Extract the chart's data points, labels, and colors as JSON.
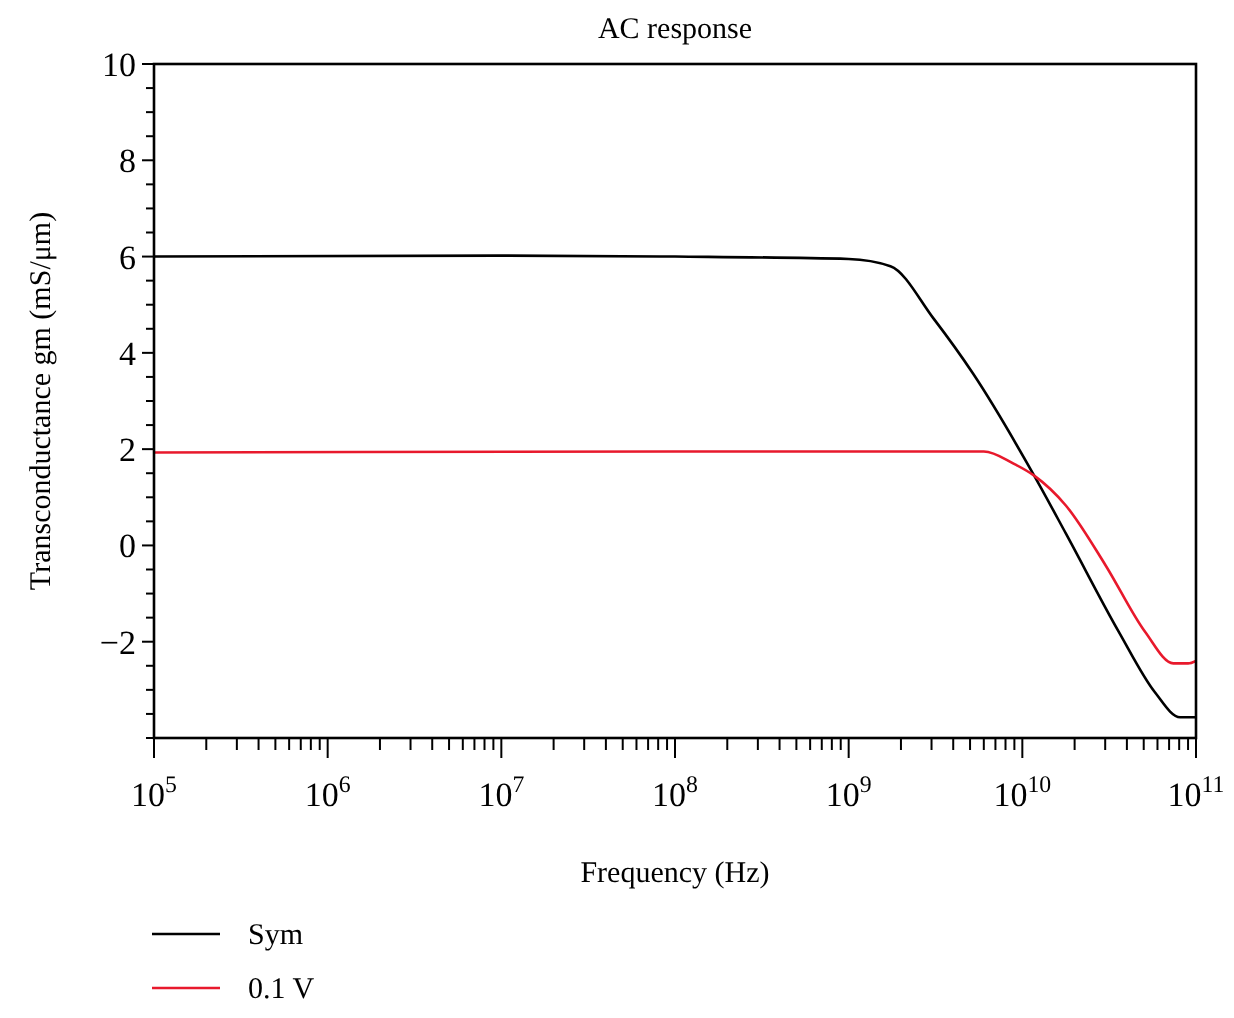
{
  "chart_data": {
    "type": "line",
    "title": "AC response",
    "xlabel": "Frequency (Hz)",
    "ylabel": "Transconductance gm (mS/μm)",
    "log": "x",
    "xlim": [
      100000.0,
      100000000000.0
    ],
    "ylim": [
      -4,
      10
    ],
    "xticks": [
      {
        "value": 100000.0,
        "label": "10$^{5}$"
      },
      {
        "value": 200000.0,
        "label": null
      },
      {
        "value": 300000.0,
        "label": null
      },
      {
        "value": 400000.0,
        "label": null
      },
      {
        "value": 500000.0,
        "label": null
      },
      {
        "value": 600000.0,
        "label": null
      },
      {
        "value": 700000.0,
        "label": null
      },
      {
        "value": 800000.0,
        "label": null
      },
      {
        "value": 900000.0,
        "label": null
      },
      {
        "value": 1000000.0,
        "label": "10$^{6}$"
      },
      {
        "value": 2000000.0,
        "label": null
      },
      {
        "value": 3000000.0,
        "label": null
      },
      {
        "value": 4000000.0,
        "label": null
      },
      {
        "value": 5000000.0,
        "label": null
      },
      {
        "value": 6000000.0,
        "label": null
      },
      {
        "value": 7000000.0,
        "label": null
      },
      {
        "value": 8000000.0,
        "label": null
      },
      {
        "value": 9000000.0,
        "label": null
      },
      {
        "value": 10000000.0,
        "label": "10$^{7}$"
      },
      {
        "value": 20000000.0,
        "label": null
      },
      {
        "value": 30000000.0,
        "label": null
      },
      {
        "value": 40000000.0,
        "label": null
      },
      {
        "value": 50000000.0,
        "label": null
      },
      {
        "value": 60000000.0,
        "label": null
      },
      {
        "value": 70000000.0,
        "label": null
      },
      {
        "value": 80000000.0,
        "label": null
      },
      {
        "value": 90000000.0,
        "label": null
      },
      {
        "value": 100000000.0,
        "label": "10$^{8}$"
      },
      {
        "value": 200000000.0,
        "label": null
      },
      {
        "value": 300000000.0,
        "label": null
      },
      {
        "value": 400000000.0,
        "label": null
      },
      {
        "value": 500000000.0,
        "label": null
      },
      {
        "value": 600000000.0,
        "label": null
      },
      {
        "value": 700000000.0,
        "label": null
      },
      {
        "value": 800000000.0,
        "label": null
      },
      {
        "value": 900000000.0,
        "label": null
      },
      {
        "value": 1000000000.0,
        "label": "10$^{9}$"
      },
      {
        "value": 2000000000.0,
        "label": null
      },
      {
        "value": 3000000000.0,
        "label": null
      },
      {
        "value": 4000000000.0,
        "label": null
      },
      {
        "value": 5000000000.0,
        "label": null
      },
      {
        "value": 6000000000.0,
        "label": null
      },
      {
        "value": 7000000000.0,
        "label": null
      },
      {
        "value": 8000000000.0,
        "label": null
      },
      {
        "value": 9000000000.0,
        "label": null
      },
      {
        "value": 10000000000.0,
        "label": "10$^{10}$"
      },
      {
        "value": 20000000000.0,
        "label": null
      },
      {
        "value": 30000000000.0,
        "label": null
      },
      {
        "value": 40000000000.0,
        "label": null
      },
      {
        "value": 50000000000.0,
        "label": null
      },
      {
        "value": 60000000000.0,
        "label": null
      },
      {
        "value": 70000000000.0,
        "label": null
      },
      {
        "value": 80000000000.0,
        "label": null
      },
      {
        "value": 90000000000.0,
        "label": null
      },
      {
        "value": 100000000000.0,
        "label": "10$^{11}$"
      }
    ],
    "yticks": [
      {
        "value": -4,
        "label": null
      },
      {
        "value": -3.5,
        "label": null
      },
      {
        "value": -3,
        "label": null
      },
      {
        "value": -2.5,
        "label": null
      },
      {
        "value": -2,
        "label": "−2"
      },
      {
        "value": -1.5,
        "label": null
      },
      {
        "value": -1,
        "label": null
      },
      {
        "value": -0.5,
        "label": null
      },
      0,
      {
        "value": 0.5,
        "label": null
      },
      {
        "value": 1,
        "label": null
      },
      {
        "value": 1.5,
        "label": null
      },
      2,
      {
        "value": 2.5,
        "label": null
      },
      {
        "value": 3,
        "label": null
      },
      {
        "value": 3.5,
        "label": null
      },
      4,
      {
        "value": 4.5,
        "label": null
      },
      {
        "value": 5,
        "label": null
      },
      {
        "value": 5.5,
        "label": null
      },
      6,
      {
        "value": 6.5,
        "label": null
      },
      {
        "value": 7,
        "label": null
      },
      {
        "value": 7.5,
        "label": null
      },
      8,
      {
        "value": 8.5,
        "label": null
      },
      {
        "value": 9,
        "label": null
      },
      {
        "value": 9.5,
        "label": null
      },
      10
    ],
    "grid": false,
    "legend": "bottom left",
    "line_style": "solid",
    "marker": "none",
    "series": [
      {
        "name": "Sym",
        "color": "#000000",
        "x": [
          100000.0,
          10000000.0,
          100000000.0,
          1000000000.0,
          1740000000.0,
          3100000000.0,
          5200000000.0,
          11700000000.0,
          17800000000.0,
          36000000000.0,
          58000000000.0,
          81000000000.0,
          100000000000.0
        ],
        "values": [
          6.0,
          6.02,
          6.0,
          5.95,
          5.8,
          4.7,
          3.57,
          1.45,
          0.25,
          -1.8,
          -3.05,
          -3.57,
          -3.57
        ]
      },
      {
        "name": "0.1 V",
        "color": "#e8192c",
        "x": [
          100000.0,
          100000000.0,
          6000000000.0,
          8900000000.0,
          11700000000.0,
          17800000000.0,
          30000000000.0,
          51000000000.0,
          74000000000.0,
          90000000000.0,
          100000000000.0
        ],
        "values": [
          1.93,
          1.95,
          1.95,
          1.7,
          1.45,
          0.83,
          -0.4,
          -1.8,
          -2.45,
          -2.45,
          -2.4
        ]
      }
    ]
  }
}
